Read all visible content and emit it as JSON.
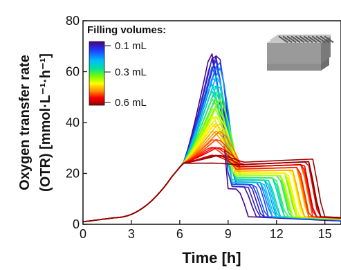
{
  "chart_data": {
    "type": "line",
    "xlabel": "Time   [h]",
    "ylabel_line1": "Oxygen transfer rate",
    "ylabel_line2": "(OTR)  [mmol·L⁻¹·h⁻¹]",
    "xlim": [
      0,
      16
    ],
    "ylim": [
      0,
      80
    ],
    "xticks": [
      0,
      3,
      6,
      9,
      12,
      15
    ],
    "yticks": [
      0,
      20,
      40,
      60,
      80
    ],
    "grid": false,
    "legend": {
      "title": "Filling volumes:",
      "placement": "top-left",
      "labels": [
        "0.1 mL",
        "0.3 mL",
        "0.6 mL"
      ],
      "colormap": [
        "#4b0082",
        "#1e3cff",
        "#00bfff",
        "#00e0a0",
        "#7cfc00",
        "#ffff00",
        "#ff8c00",
        "#ff0000",
        "#8b0000"
      ]
    },
    "inset_image": "microtiter-plate",
    "series_model": {
      "count": 40,
      "volume_range_mL": [
        0.1,
        0.6
      ],
      "rise_start_h": 5.5,
      "base_level": [
        0,
        2,
        23
      ],
      "peak_time_h": [
        8.2,
        8.2
      ],
      "peak_otr": [
        70,
        25
      ],
      "drop_time_h": [
        9.2,
        9.8
      ],
      "second_phase_otr": [
        15,
        24
      ],
      "end_time_h": [
        10.5,
        14.8
      ],
      "final_otr": 2
    }
  }
}
